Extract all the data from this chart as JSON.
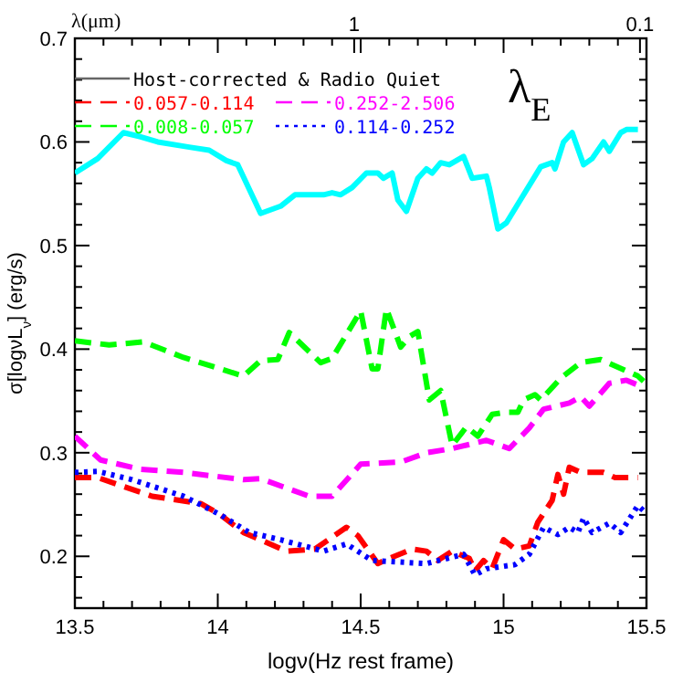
{
  "chart_data": {
    "type": "line",
    "xlabel": "logν(Hz rest frame)",
    "ylabel": "σ[logνL$_{ν}$] (erg/s)",
    "x2label": "λ(μm)",
    "legend_title": "Host-corrected & Radio Quiet",
    "legend": "top",
    "annotations": [
      "λ$_{E}$"
    ],
    "xlim": [
      13.5,
      15.5
    ],
    "xticks": [
      13.5,
      {
        "value": 13.6,
        "label": null
      },
      {
        "value": 13.7,
        "label": null
      },
      {
        "value": 13.8,
        "label": null
      },
      {
        "value": 13.9,
        "label": null
      },
      14,
      {
        "value": 14.1,
        "label": null
      },
      {
        "value": 14.2,
        "label": null
      },
      {
        "value": 14.3,
        "label": null
      },
      {
        "value": 14.4,
        "label": null
      },
      14.5,
      {
        "value": 14.6,
        "label": null
      },
      {
        "value": 14.7,
        "label": null
      },
      {
        "value": 14.8,
        "label": null
      },
      {
        "value": 14.9,
        "label": null
      },
      15,
      {
        "value": 15.1,
        "label": null
      },
      {
        "value": 15.2,
        "label": null
      },
      {
        "value": 15.3,
        "label": null
      },
      {
        "value": 15.4,
        "label": null
      },
      15.5
    ],
    "ylim": [
      0.15,
      0.7
    ],
    "yticks": [
      {
        "value": 0.16,
        "label": null
      },
      {
        "value": 0.18,
        "label": null
      },
      0.2,
      {
        "value": 0.22,
        "label": null
      },
      {
        "value": 0.24,
        "label": null
      },
      {
        "value": 0.26,
        "label": null
      },
      {
        "value": 0.28,
        "label": null
      },
      0.3,
      {
        "value": 0.32,
        "label": null
      },
      {
        "value": 0.34,
        "label": null
      },
      {
        "value": 0.36,
        "label": null
      },
      {
        "value": 0.38,
        "label": null
      },
      0.4,
      {
        "value": 0.42,
        "label": null
      },
      {
        "value": 0.44,
        "label": null
      },
      {
        "value": 0.46,
        "label": null
      },
      {
        "value": 0.48,
        "label": null
      },
      0.5,
      {
        "value": 0.52,
        "label": null
      },
      {
        "value": 0.54,
        "label": null
      },
      {
        "value": 0.56,
        "label": null
      },
      {
        "value": 0.58,
        "label": null
      },
      0.6,
      {
        "value": 0.62,
        "label": null
      },
      {
        "value": 0.64,
        "label": null
      },
      {
        "value": 0.66,
        "label": null
      },
      {
        "value": 0.68,
        "label": null
      },
      0.7
    ],
    "x2lim": [
      9.49,
      0.0949
    ],
    "x2ticks": [
      1,
      0.1
    ],
    "grid": false,
    "log": "x2",
    "series": [
      {
        "color": "#00ffff",
        "line_style": "solid",
        "x": [
          13.5,
          13.58,
          13.67,
          13.73,
          13.79,
          13.9,
          13.97,
          14.03,
          14.07,
          14.15,
          14.22,
          14.27,
          14.37,
          14.4,
          14.43,
          14.47,
          14.52,
          14.56,
          14.58,
          14.61,
          14.63,
          14.66,
          14.7,
          14.73,
          14.75,
          14.78,
          14.81,
          14.86,
          14.89,
          14.94,
          14.95,
          14.98,
          15.01,
          15.05,
          15.11,
          15.13,
          15.17,
          15.18,
          15.21,
          15.24,
          15.28,
          15.31,
          15.35,
          15.37,
          15.41,
          15.43,
          15.47
        ],
        "values": [
          0.57,
          0.584,
          0.609,
          0.605,
          0.6,
          0.595,
          0.592,
          0.582,
          0.578,
          0.531,
          0.538,
          0.549,
          0.549,
          0.551,
          0.549,
          0.556,
          0.57,
          0.57,
          0.565,
          0.57,
          0.544,
          0.533,
          0.565,
          0.574,
          0.57,
          0.58,
          0.578,
          0.586,
          0.565,
          0.567,
          0.556,
          0.516,
          0.522,
          0.54,
          0.567,
          0.576,
          0.58,
          0.574,
          0.6,
          0.609,
          0.578,
          0.584,
          0.6,
          0.591,
          0.609,
          0.612,
          0.612
        ]
      },
      {
        "name": "0.057-0.114",
        "color": "#ff0000",
        "line_style": "dashed",
        "x": [
          13.5,
          13.58,
          13.77,
          13.94,
          14.01,
          14.09,
          14.24,
          14.34,
          14.45,
          14.49,
          14.56,
          14.6,
          14.68,
          14.73,
          14.77,
          14.82,
          14.88,
          14.9,
          14.93,
          14.96,
          15.0,
          15.04,
          15.09,
          15.12,
          15.17,
          15.19,
          15.21,
          15.23,
          15.27,
          15.35,
          15.39,
          15.47
        ],
        "values": [
          0.276,
          0.276,
          0.258,
          0.251,
          0.24,
          0.223,
          0.205,
          0.207,
          0.228,
          0.22,
          0.193,
          0.198,
          0.207,
          0.205,
          0.196,
          0.205,
          0.198,
          0.186,
          0.196,
          0.188,
          0.216,
          0.207,
          0.21,
          0.233,
          0.254,
          0.279,
          0.26,
          0.286,
          0.281,
          0.281,
          0.276,
          0.276
        ]
      },
      {
        "name": "0.252-2.506",
        "color": "#ff00ff",
        "line_style": "dashed",
        "x": [
          13.5,
          13.59,
          13.73,
          13.88,
          14.09,
          14.15,
          14.32,
          14.4,
          14.5,
          14.64,
          14.73,
          14.82,
          14.94,
          15.02,
          15.09,
          15.14,
          15.23,
          15.27,
          15.3,
          15.37,
          15.43,
          15.49
        ],
        "values": [
          0.316,
          0.293,
          0.284,
          0.281,
          0.274,
          0.275,
          0.258,
          0.258,
          0.289,
          0.291,
          0.3,
          0.304,
          0.312,
          0.304,
          0.324,
          0.342,
          0.348,
          0.354,
          0.345,
          0.367,
          0.37,
          0.363
        ]
      },
      {
        "name": "0.008-0.057",
        "color": "#00ff00",
        "line_style": "dashed",
        "x": [
          13.5,
          13.62,
          13.74,
          13.88,
          14.09,
          14.15,
          14.21,
          14.25,
          14.36,
          14.4,
          14.5,
          14.54,
          14.56,
          14.59,
          14.64,
          14.67,
          14.7,
          14.74,
          14.78,
          14.82,
          14.87,
          14.91,
          14.96,
          15.01,
          15.05,
          15.07,
          15.11,
          15.13,
          15.2,
          15.27,
          15.34,
          15.47,
          15.49
        ],
        "values": [
          0.408,
          0.404,
          0.407,
          0.392,
          0.374,
          0.389,
          0.39,
          0.416,
          0.387,
          0.391,
          0.437,
          0.381,
          0.381,
          0.439,
          0.402,
          0.412,
          0.417,
          0.351,
          0.36,
          0.307,
          0.325,
          0.316,
          0.337,
          0.339,
          0.339,
          0.351,
          0.356,
          0.351,
          0.372,
          0.387,
          0.39,
          0.374,
          0.369
        ]
      },
      {
        "name": "0.114-0.252",
        "color": "#0000ff",
        "line_style": "dotted",
        "x": [
          13.5,
          13.58,
          13.7,
          13.88,
          14.01,
          14.11,
          14.22,
          14.37,
          14.45,
          14.54,
          14.73,
          14.86,
          14.9,
          14.94,
          15.04,
          15.09,
          15.14,
          15.19,
          15.23,
          15.26,
          15.28,
          15.31,
          15.37,
          15.41,
          15.47,
          15.49
        ],
        "values": [
          0.281,
          0.282,
          0.274,
          0.258,
          0.24,
          0.223,
          0.216,
          0.205,
          0.212,
          0.196,
          0.193,
          0.202,
          0.182,
          0.188,
          0.192,
          0.202,
          0.228,
          0.221,
          0.228,
          0.223,
          0.237,
          0.223,
          0.232,
          0.223,
          0.249,
          0.244
        ]
      }
    ]
  }
}
